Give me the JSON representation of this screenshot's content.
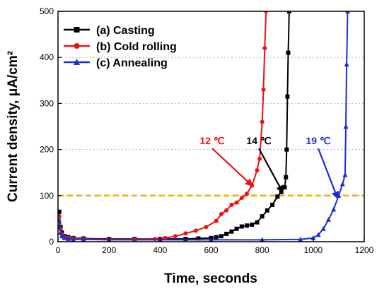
{
  "chart_data": {
    "type": "line",
    "title": "",
    "xlabel": "Time, seconds",
    "ylabel": "Current density, μA/cm²",
    "xlim": [
      0,
      1200
    ],
    "ylim": [
      0,
      500
    ],
    "x_ticks": [
      0,
      200,
      400,
      600,
      800,
      1000,
      1200
    ],
    "y_ticks": [
      0,
      100,
      200,
      300,
      400,
      500
    ],
    "grid": "horizontal-dotted",
    "legend_placement": "top-left",
    "reference_line": {
      "y": 100,
      "color": "#f0b000",
      "style": "dashed"
    },
    "series": [
      {
        "name": "(a) Casting",
        "color": "#000000",
        "marker": "square",
        "points": [
          [
            5,
            65
          ],
          [
            10,
            32
          ],
          [
            15,
            20
          ],
          [
            25,
            12
          ],
          [
            40,
            10
          ],
          [
            60,
            8
          ],
          [
            100,
            7
          ],
          [
            200,
            6
          ],
          [
            300,
            6
          ],
          [
            400,
            6
          ],
          [
            500,
            6
          ],
          [
            550,
            7
          ],
          [
            600,
            8
          ],
          [
            620,
            10
          ],
          [
            640,
            12
          ],
          [
            660,
            17
          ],
          [
            680,
            22
          ],
          [
            700,
            28
          ],
          [
            720,
            33
          ],
          [
            740,
            35
          ],
          [
            760,
            37
          ],
          [
            780,
            42
          ],
          [
            800,
            55
          ],
          [
            820,
            68
          ],
          [
            840,
            80
          ],
          [
            860,
            98
          ],
          [
            875,
            108
          ],
          [
            888,
            118
          ],
          [
            893,
            140
          ],
          [
            896,
            200
          ],
          [
            899,
            315
          ],
          [
            902,
            410
          ],
          [
            906,
            500
          ]
        ]
      },
      {
        "name": "(b) Cold rolling",
        "color": "#ee1111",
        "marker": "circle",
        "points": [
          [
            5,
            55
          ],
          [
            10,
            28
          ],
          [
            15,
            16
          ],
          [
            25,
            10
          ],
          [
            40,
            8
          ],
          [
            60,
            7
          ],
          [
            100,
            6
          ],
          [
            200,
            5
          ],
          [
            300,
            5
          ],
          [
            380,
            6
          ],
          [
            420,
            8
          ],
          [
            460,
            12
          ],
          [
            500,
            18
          ],
          [
            540,
            24
          ],
          [
            580,
            32
          ],
          [
            620,
            45
          ],
          [
            640,
            60
          ],
          [
            660,
            68
          ],
          [
            680,
            80
          ],
          [
            700,
            85
          ],
          [
            720,
            95
          ],
          [
            740,
            104
          ],
          [
            760,
            122
          ],
          [
            780,
            155
          ],
          [
            790,
            180
          ],
          [
            800,
            260
          ],
          [
            805,
            330
          ],
          [
            810,
            420
          ],
          [
            815,
            500
          ]
        ]
      },
      {
        "name": "(c) Annealing",
        "color": "#1a2fd6",
        "marker": "triangle",
        "points": [
          [
            5,
            45
          ],
          [
            10,
            20
          ],
          [
            15,
            12
          ],
          [
            25,
            8
          ],
          [
            40,
            6
          ],
          [
            60,
            5
          ],
          [
            100,
            5
          ],
          [
            200,
            4
          ],
          [
            400,
            4
          ],
          [
            600,
            4
          ],
          [
            800,
            4
          ],
          [
            950,
            5
          ],
          [
            1000,
            8
          ],
          [
            1020,
            15
          ],
          [
            1040,
            28
          ],
          [
            1060,
            48
          ],
          [
            1080,
            70
          ],
          [
            1100,
            100
          ],
          [
            1115,
            125
          ],
          [
            1125,
            145
          ],
          [
            1128,
            250
          ],
          [
            1131,
            385
          ],
          [
            1135,
            500
          ]
        ]
      }
    ],
    "annotations": [
      {
        "text": "12 ℃",
        "color": "#ee1111",
        "target": [
          760,
          122
        ]
      },
      {
        "text": "14 ℃",
        "color": "#000000",
        "target": [
          880,
          108
        ]
      },
      {
        "text": "19 ℃",
        "color": "#1a2fd6",
        "target": [
          1095,
          95
        ]
      }
    ]
  }
}
